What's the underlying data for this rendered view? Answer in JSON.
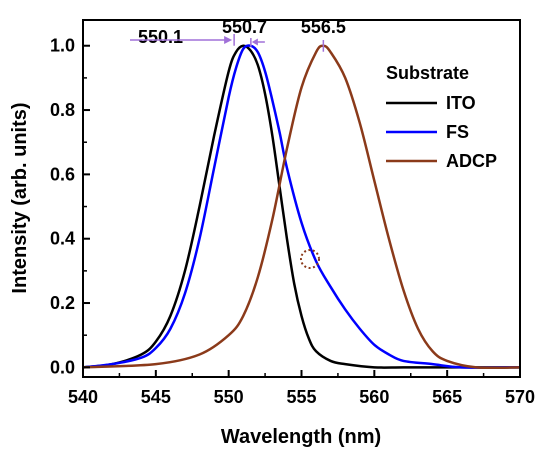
{
  "chart_data": {
    "type": "line",
    "xlabel": "Wavelength (nm)",
    "ylabel": "Intensity (arb. units)",
    "xlim": [
      540,
      570
    ],
    "ylim": [
      -0.03,
      1.08
    ],
    "xticks": [
      540,
      545,
      550,
      555,
      560,
      565,
      570
    ],
    "yticks": [
      0.0,
      0.2,
      0.4,
      0.6,
      0.8,
      1.0
    ],
    "ytick_labels": [
      "0.0",
      "0.2",
      "0.4",
      "0.6",
      "0.8",
      "1.0"
    ],
    "grid": false,
    "legend": {
      "title": "Substrate",
      "placement": "top-right"
    },
    "series": [
      {
        "name": "ITO",
        "color": "#000000",
        "x": [
          540,
          542,
          544,
          545,
          546,
          547,
          548,
          549,
          550,
          550.5,
          551,
          551.5,
          552,
          552.5,
          553,
          553.5,
          554,
          554.5,
          555,
          555.5,
          556,
          557,
          558,
          560,
          562,
          565,
          570
        ],
        "y": [
          0.0,
          0.01,
          0.04,
          0.08,
          0.16,
          0.3,
          0.5,
          0.72,
          0.92,
          0.98,
          1.0,
          0.985,
          0.94,
          0.85,
          0.72,
          0.56,
          0.4,
          0.26,
          0.16,
          0.09,
          0.05,
          0.02,
          0.01,
          0.0,
          0.0,
          0.0,
          0.0
        ]
      },
      {
        "name": "FS",
        "color": "#0000ff",
        "x": [
          540,
          542,
          544,
          545,
          546,
          547,
          548,
          549,
          550,
          550.5,
          551,
          551.5,
          552,
          552.5,
          553,
          553.5,
          554,
          555,
          556,
          557,
          558,
          559,
          560,
          561,
          562,
          564,
          566,
          570
        ],
        "y": [
          0.0,
          0.01,
          0.03,
          0.06,
          0.12,
          0.23,
          0.4,
          0.62,
          0.84,
          0.93,
          0.99,
          1.0,
          0.98,
          0.92,
          0.83,
          0.73,
          0.62,
          0.45,
          0.33,
          0.25,
          0.18,
          0.12,
          0.07,
          0.04,
          0.02,
          0.01,
          0.0,
          0.0
        ]
      },
      {
        "name": "ADCP",
        "color": "#8b3a1a",
        "x": [
          540,
          545,
          548,
          550,
          551,
          552,
          553,
          554,
          555,
          556,
          556.5,
          557,
          558,
          559,
          560,
          561,
          562,
          563,
          564,
          565,
          567,
          570
        ],
        "y": [
          0.0,
          0.01,
          0.04,
          0.1,
          0.16,
          0.28,
          0.46,
          0.68,
          0.87,
          0.98,
          1.0,
          0.98,
          0.9,
          0.76,
          0.58,
          0.4,
          0.24,
          0.12,
          0.05,
          0.02,
          0.0,
          0.0
        ]
      }
    ],
    "annotations": [
      {
        "text": "550.1",
        "x": 550.1,
        "y": 1.0,
        "series": "ITO"
      },
      {
        "text": "550.7",
        "x": 550.7,
        "y": 1.0,
        "series": "FS"
      },
      {
        "text": "556.5",
        "x": 556.5,
        "y": 1.0,
        "series": "ADCP"
      }
    ]
  }
}
